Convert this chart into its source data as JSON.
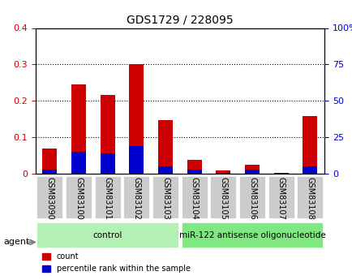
{
  "title": "GDS1729 / 228095",
  "categories": [
    "GSM83090",
    "GSM83100",
    "GSM83101",
    "GSM83102",
    "GSM83103",
    "GSM83104",
    "GSM83105",
    "GSM83106",
    "GSM83107",
    "GSM83108"
  ],
  "red_values": [
    0.07,
    0.245,
    0.215,
    0.3,
    0.148,
    0.038,
    0.008,
    0.025,
    0.003,
    0.158
  ],
  "blue_values": [
    0.01,
    0.06,
    0.055,
    0.075,
    0.02,
    0.01,
    0.002,
    0.01,
    0.001,
    0.02
  ],
  "red_color": "#cc0000",
  "blue_color": "#0000cc",
  "ylim_left": [
    0,
    0.4
  ],
  "ylim_right": [
    0,
    100
  ],
  "yticks_left": [
    0,
    0.1,
    0.2,
    0.3,
    0.4
  ],
  "yticks_right": [
    0,
    25,
    50,
    75,
    100
  ],
  "ytick_labels_right": [
    "0",
    "25",
    "50",
    "75",
    "100%"
  ],
  "ytick_labels_left": [
    "0",
    "0.1",
    "0.2",
    "0.3",
    "0.4"
  ],
  "groups": [
    {
      "label": "control",
      "start": 0,
      "end": 4,
      "color": "#b3f0b3"
    },
    {
      "label": "miR-122 antisense oligonucleotide",
      "start": 5,
      "end": 9,
      "color": "#80e880"
    }
  ],
  "agent_label": "agent",
  "bar_width": 0.5,
  "grid_color": "#000000",
  "background_plot": "#ffffff",
  "tick_bg_color": "#cccccc",
  "legend_items": [
    {
      "label": "count",
      "color": "#cc0000"
    },
    {
      "label": "percentile rank within the sample",
      "color": "#0000cc"
    }
  ]
}
